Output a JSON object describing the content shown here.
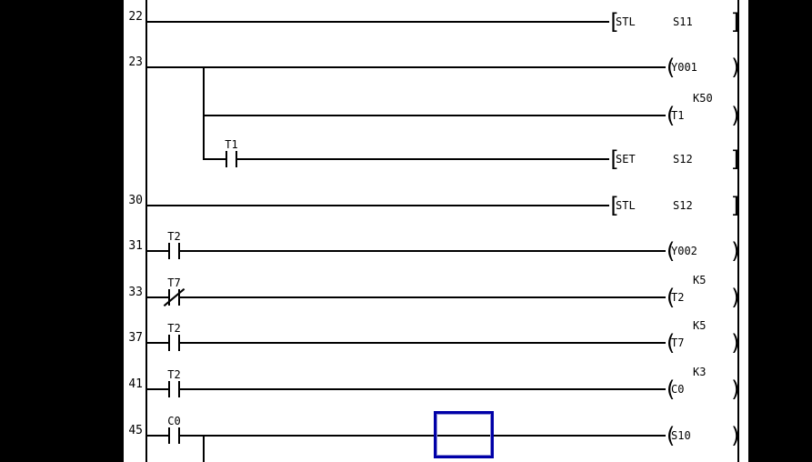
{
  "window": {
    "background_color": "#000000"
  },
  "editor": {
    "background_color": "#ffffff",
    "line_color": "#000000",
    "cursor": {
      "border_color": "#0000a8",
      "inner_highlight_color": "#8f8fd4"
    }
  },
  "ladder": {
    "rows": [
      {
        "step": "22",
        "start": "bus",
        "instruction": {
          "open": "[",
          "op": "STL",
          "operand": "S11",
          "close": "]"
        }
      },
      {
        "step": "23",
        "start": "bus",
        "coil": {
          "open": "(",
          "device": "Y001",
          "close": ")"
        },
        "branch_drop_to_row": 3
      },
      {
        "step": "",
        "start": "branch",
        "coil": {
          "open": "(",
          "device": "T1",
          "close": ")",
          "constant": "K50"
        }
      },
      {
        "step": "",
        "start": "branch",
        "contact": {
          "device": "T1",
          "kind": "no"
        },
        "instruction": {
          "open": "[",
          "op": "SET",
          "operand": "S12",
          "close": "]"
        }
      },
      {
        "step": "30",
        "start": "bus",
        "instruction": {
          "open": "[",
          "op": "STL",
          "operand": "S12",
          "close": "]"
        }
      },
      {
        "step": "31",
        "start": "bus",
        "contact": {
          "device": "T2",
          "kind": "no"
        },
        "coil": {
          "open": "(",
          "device": "Y002",
          "close": ")"
        }
      },
      {
        "step": "33",
        "start": "bus",
        "contact": {
          "device": "T7",
          "kind": "nc"
        },
        "coil": {
          "open": "(",
          "device": "T2",
          "close": ")",
          "constant": "K5"
        }
      },
      {
        "step": "37",
        "start": "bus",
        "contact": {
          "device": "T2",
          "kind": "no"
        },
        "coil": {
          "open": "(",
          "device": "T7",
          "close": ")",
          "constant": "K5"
        }
      },
      {
        "step": "41",
        "start": "bus",
        "contact": {
          "device": "T2",
          "kind": "no"
        },
        "coil": {
          "open": "(",
          "device": "C0",
          "close": ")",
          "constant": "K3"
        }
      },
      {
        "step": "45",
        "start": "bus",
        "contact": {
          "device": "C0",
          "kind": "no"
        },
        "coil": {
          "open": "(",
          "device": "S10",
          "close": ")"
        },
        "branch_drop_to_bottom": true
      }
    ]
  }
}
